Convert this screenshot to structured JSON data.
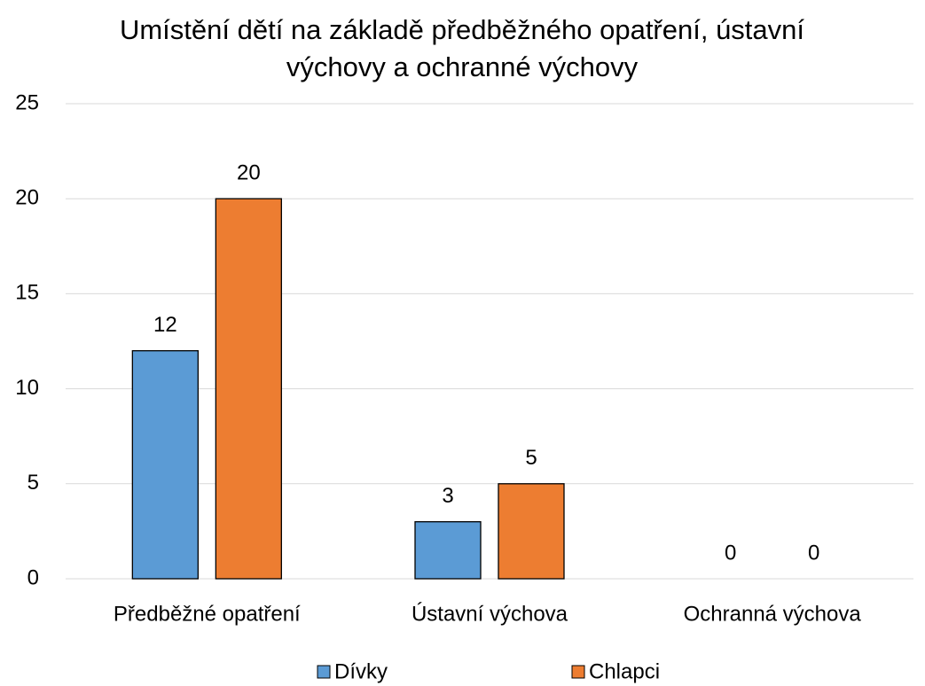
{
  "chart_data": {
    "type": "bar",
    "title": [
      "Umístění dětí na základě předběžného opatření, ústavní",
      "výchovy a ochranné výchovy"
    ],
    "categories": [
      "Předběžné opatření",
      "Ústavní výchova",
      "Ochranná výchova"
    ],
    "series": [
      {
        "name": "Dívky",
        "color": "#5b9bd5",
        "values": [
          12,
          3,
          0
        ]
      },
      {
        "name": "Chlapci",
        "color": "#ed7d31",
        "values": [
          20,
          5,
          0
        ]
      }
    ],
    "ylim": [
      0,
      25
    ],
    "yticks": [
      0,
      5,
      10,
      15,
      20,
      25
    ],
    "grid": true,
    "legend": "bottom"
  }
}
